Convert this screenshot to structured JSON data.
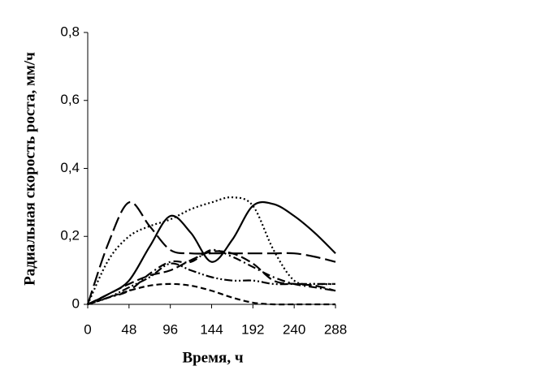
{
  "chart_data": {
    "type": "line",
    "xlabel": "Время, ч",
    "ylabel": "Радиальная скорость роста, мм/ч",
    "x": [
      0,
      24,
      48,
      72,
      96,
      120,
      144,
      168,
      192,
      216,
      240,
      264,
      288
    ],
    "series": [
      {
        "color": "#000000",
        "dash": "solid",
        "values": [
          0,
          0.03,
          0.07,
          0.17,
          0.26,
          0.21,
          0.125,
          0.19,
          0.29,
          0.295,
          0.26,
          0.21,
          0.15
        ]
      },
      {
        "color": "#000000",
        "dash": "longdash",
        "values": [
          0,
          0.18,
          0.3,
          0.23,
          0.16,
          0.15,
          0.15,
          0.15,
          0.15,
          0.15,
          0.15,
          0.14,
          0.125
        ]
      },
      {
        "color": "#000000",
        "dash": "dot",
        "values": [
          0,
          0.13,
          0.2,
          0.23,
          0.25,
          0.28,
          0.3,
          0.315,
          0.29,
          0.16,
          0.07,
          0.06,
          0.06
        ]
      },
      {
        "color": "#000000",
        "dash": "dashdot",
        "values": [
          0,
          0.02,
          0.04,
          0.09,
          0.125,
          0.125,
          0.16,
          0.14,
          0.11,
          0.08,
          0.06,
          0.05,
          0.04
        ]
      },
      {
        "color": "#000000",
        "dash": "dash",
        "values": [
          0,
          0.03,
          0.06,
          0.085,
          0.1,
          0.13,
          0.155,
          0.15,
          0.12,
          0.07,
          0.06,
          0.055,
          0.04
        ]
      },
      {
        "color": "#000000",
        "dash": "shortdash",
        "values": [
          0,
          0.02,
          0.04,
          0.055,
          0.06,
          0.055,
          0.04,
          0.02,
          0.005,
          0,
          0,
          0,
          0
        ]
      },
      {
        "color": "#000000",
        "dash": "dashdotdot",
        "values": [
          0,
          0.02,
          0.05,
          0.08,
          0.12,
          0.1,
          0.08,
          0.07,
          0.07,
          0.06,
          0.06,
          0.06,
          0.06
        ]
      }
    ],
    "xlim": [
      0,
      288
    ],
    "xticks": [
      0,
      48,
      96,
      144,
      192,
      240,
      288
    ],
    "ylim": [
      0,
      0.8
    ],
    "yticks": [
      0,
      {
        "value": 0.2,
        "label": "0,2"
      },
      {
        "value": 0.4,
        "label": "0,4"
      },
      {
        "value": 0.6,
        "label": "0,6"
      },
      {
        "value": 0.8,
        "label": "0,8"
      }
    ],
    "grid": false
  }
}
